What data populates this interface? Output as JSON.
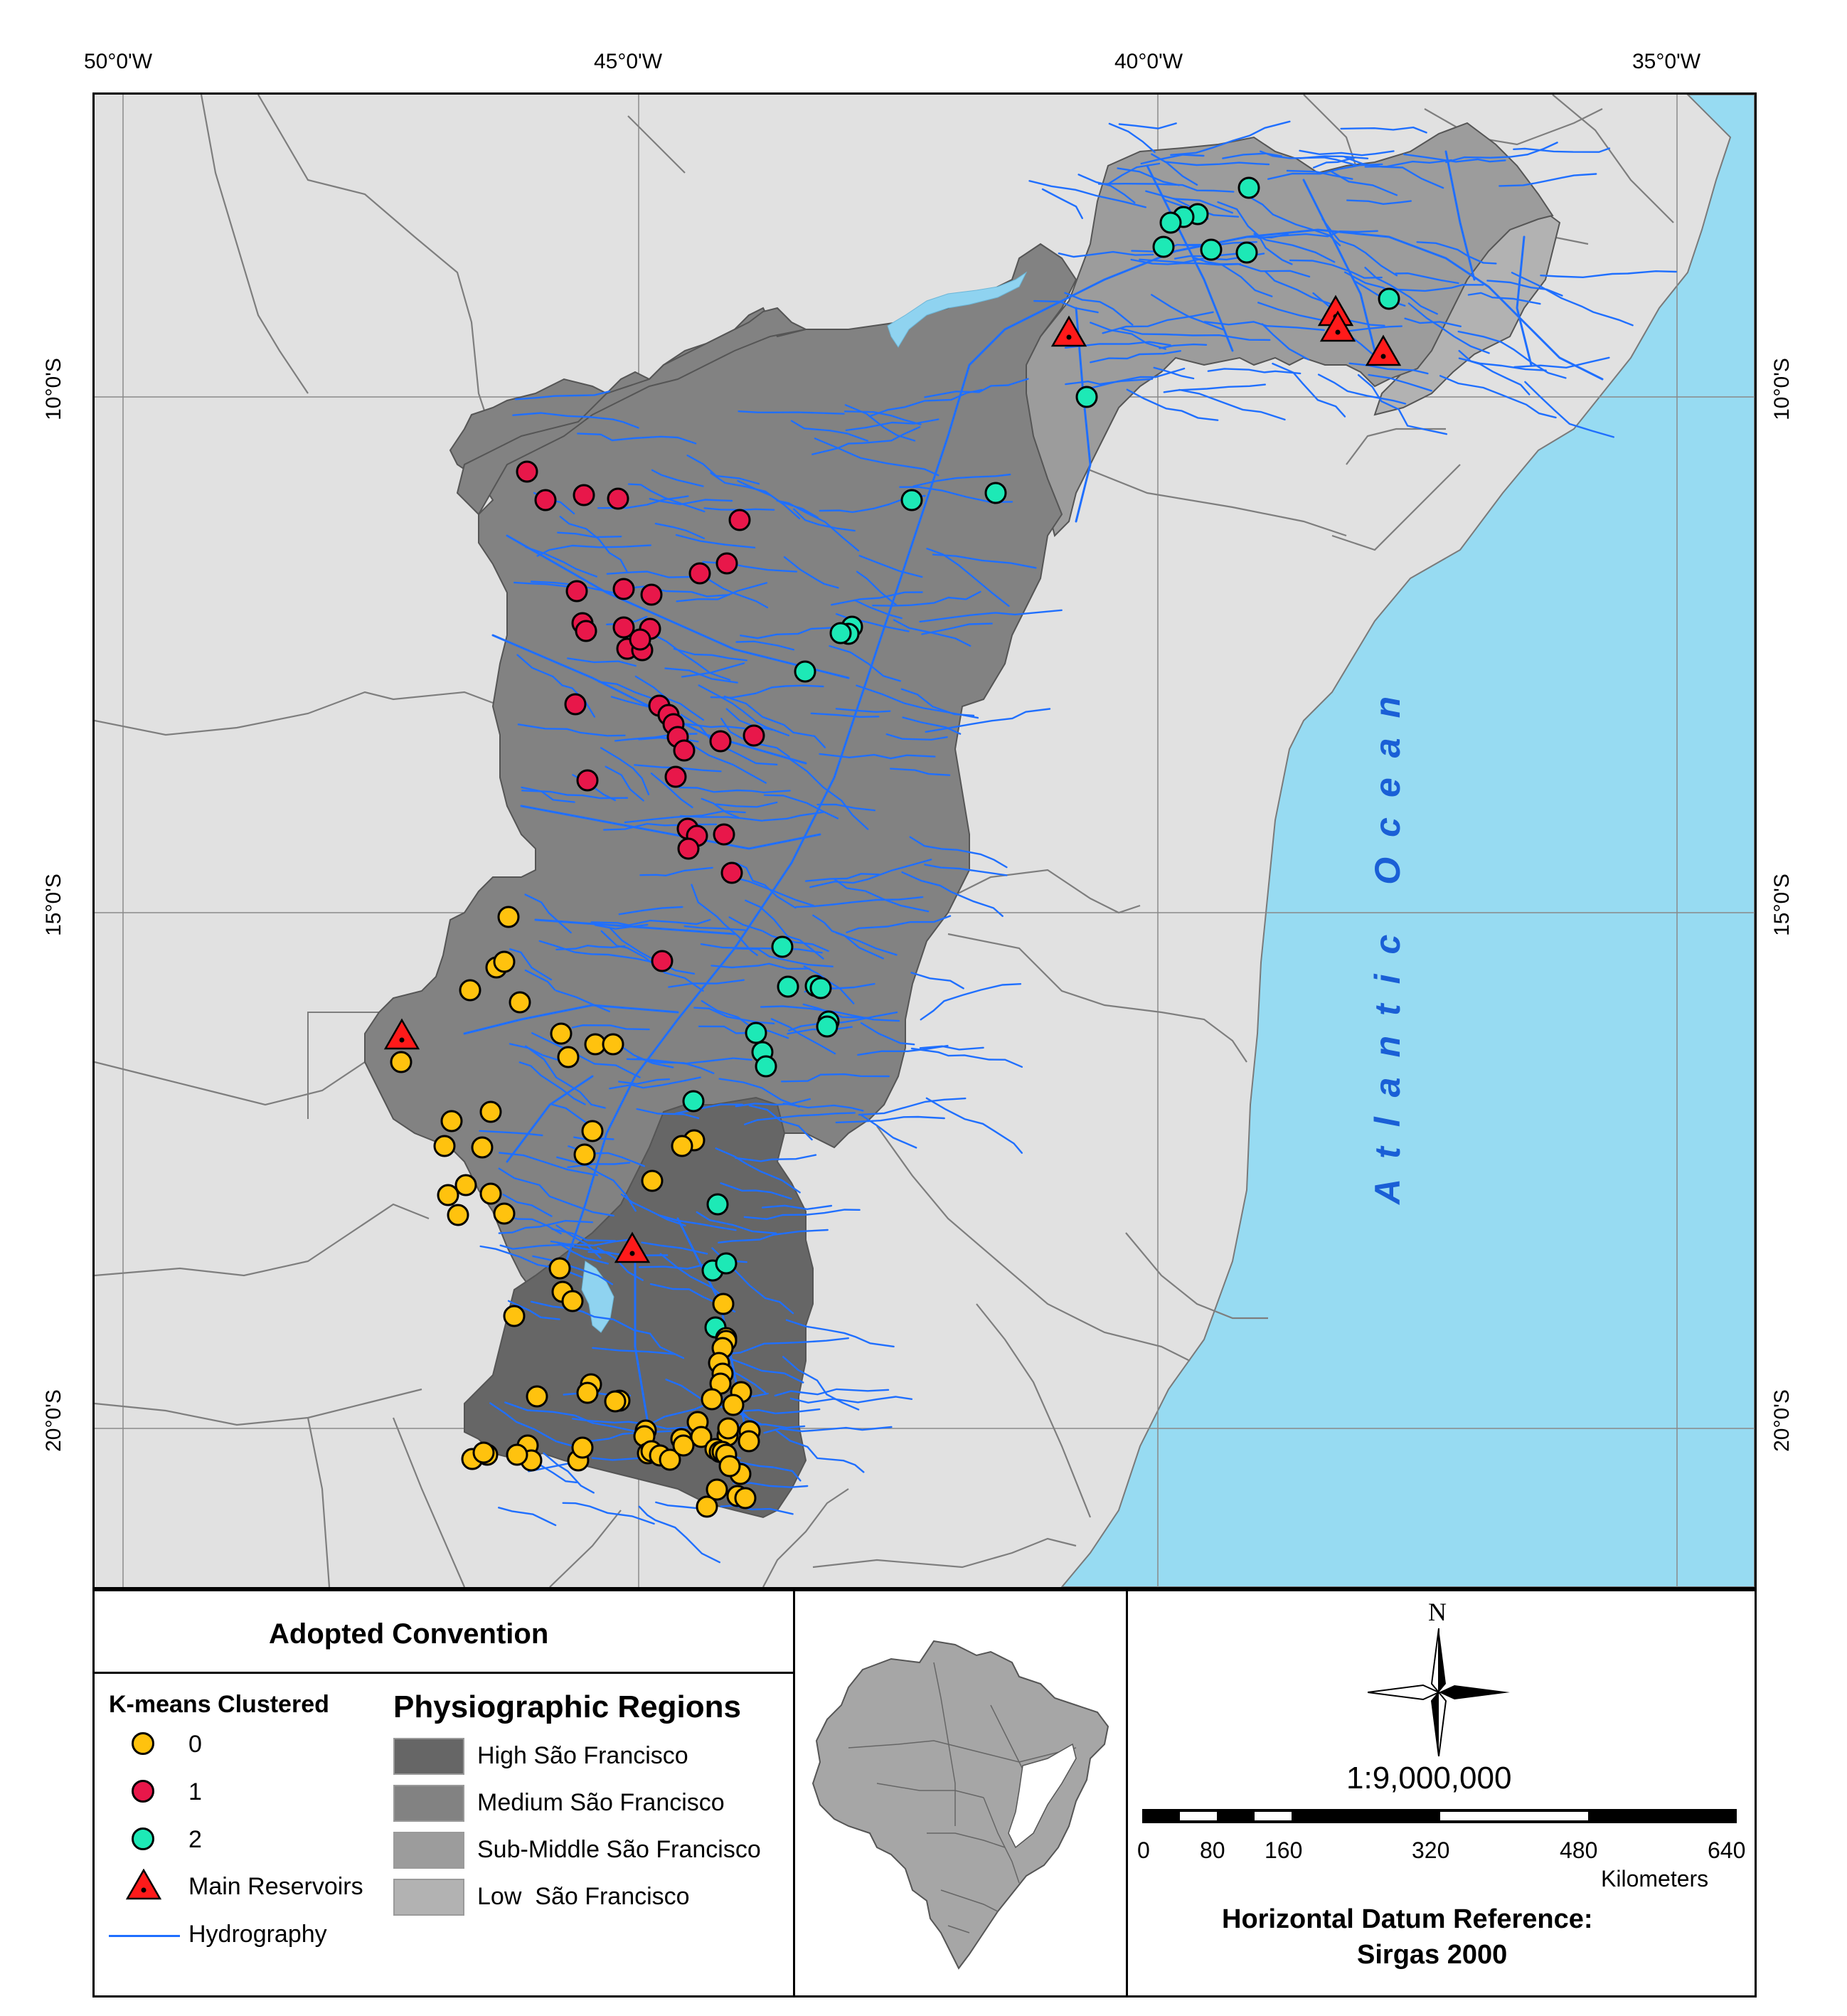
{
  "coordinates": {
    "top": [
      "50°0'W",
      "45°0'W",
      "40°0'W",
      "35°0'W"
    ],
    "left": [
      "10°0'S",
      "15°0'S",
      "20°0'S"
    ],
    "right": [
      "10°0'S",
      "15°0'S",
      "20°0'S"
    ]
  },
  "map": {
    "ocean_label": "Atlantic Ocean",
    "colors": {
      "ocean": "#97dbf2",
      "land": "#e1e1e1",
      "high": "#666666",
      "medium": "#828282",
      "sub_middle": "#9c9c9c",
      "low": "#b2b2b2",
      "river": "#1f6fff",
      "cluster_0": "#ffc20e",
      "cluster_1": "#e8174a",
      "cluster_2": "#1de9b6",
      "reservoir": "#ff1a1a"
    }
  },
  "legend": {
    "title": "Adopted Convention",
    "kmeans_title": "K-means Clustered",
    "clusters": [
      "0",
      "1",
      "2"
    ],
    "reservoirs": "Main Reservoirs",
    "hydrography": "Hydrography",
    "regions_title": "Physiographic Regions",
    "regions": [
      "High São Francisco",
      "Medium São Francisco",
      "Sub-Middle São Francisco",
      "Low  São Francisco"
    ]
  },
  "scale": {
    "north": "N",
    "ratio": "1:9,000,000",
    "ticks": [
      "0",
      "80",
      "160",
      "320",
      "480",
      "640"
    ],
    "unit": "Kilometers"
  },
  "datum": {
    "line1": "Horizontal Datum Reference:",
    "line2": "Sirgas 2000"
  }
}
